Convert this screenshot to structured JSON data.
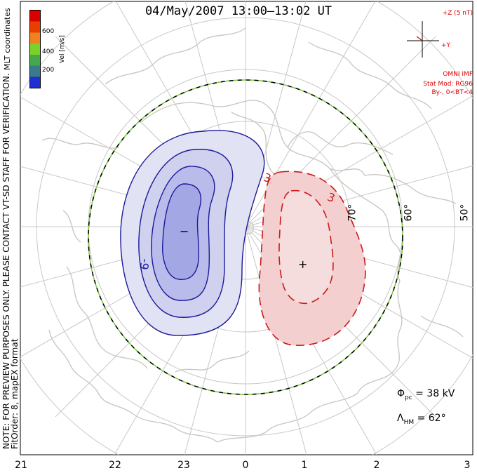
{
  "title": "04/May/2007 13:00–13:02 UT",
  "left_note": "NOTE: FOR PREVIEW PURPOSES ONLY. PLEASE CONTACT VT-SD STAFF FOR VERIFICATION.",
  "fit_info": "FitOrder: 8, mapEX format",
  "colorbar": {
    "title": "MLT coordinates",
    "unit": "Vel [m/s]",
    "ticks": [
      "600",
      "400",
      "200"
    ],
    "colors": [
      "#d90000",
      "#e83f00",
      "#f08020",
      "#7dcf2a",
      "#44a84c",
      "#3a7a8a",
      "#2030d0"
    ]
  },
  "imf": {
    "scale_label": "+Z (5 nT)",
    "y_label": "+Y",
    "source": "OMNI IMF",
    "model": "Stat Mod: RG96",
    "condition": "By-, 0<BT<4"
  },
  "stats": {
    "phi_symbol": "Φ",
    "phi_sub": "pc",
    "phi_value": "= 38 kV",
    "lambda_symbol": "Λ",
    "lambda_sub": "HM",
    "lambda_value": "= 62°"
  },
  "mlt_labels": [
    "21",
    "22",
    "23",
    "0",
    "1",
    "2",
    "3"
  ],
  "lat_labels": [
    "70°",
    "60°",
    "50°"
  ],
  "contours": {
    "negative_label": "-9",
    "positive_label_1": "3",
    "positive_label_2": "3",
    "min_marker": "−",
    "max_marker": "+"
  },
  "colors": {
    "negative": "#1a1a9a",
    "negative_fill": "#b9bcea",
    "positive": "#cc1a1a",
    "positive_fill": "#f3cfcf",
    "grid": "#c8c8c8",
    "coast": "#c9c9c0",
    "hmb_green": "#7ccc3c"
  }
}
